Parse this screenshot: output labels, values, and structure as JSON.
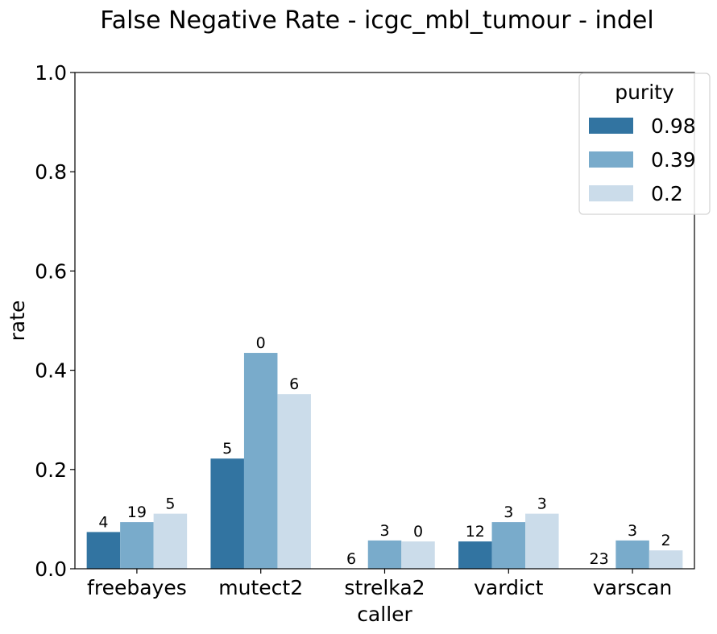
{
  "chart_data": {
    "type": "bar",
    "title": "False Negative Rate - icgc_mbl_tumour - indel",
    "xlabel": "caller",
    "ylabel": "rate",
    "ylim": [
      0,
      1.0
    ],
    "yticks": [
      "0.0",
      "0.2",
      "0.4",
      "0.6",
      "0.8",
      "1.0"
    ],
    "categories": [
      "freebayes",
      "mutect2",
      "strelka2",
      "vardict",
      "varscan"
    ],
    "legend": {
      "title": "purity",
      "placement": "top-right"
    },
    "series": [
      {
        "name": "0.98",
        "color": "#3274a1",
        "values": [
          0.074,
          0.222,
          0.0,
          0.055,
          0.0
        ],
        "labels": [
          "4",
          "5",
          "6",
          "12",
          "23"
        ]
      },
      {
        "name": "0.39",
        "color": "#79abcb",
        "values": [
          0.094,
          0.435,
          0.057,
          0.094,
          0.057
        ],
        "labels": [
          "19",
          "0",
          "3",
          "3",
          "3"
        ]
      },
      {
        "name": "0.2",
        "color": "#cbdcea",
        "values": [
          0.111,
          0.352,
          0.055,
          0.111,
          0.037
        ],
        "labels": [
          "5",
          "6",
          "0",
          "3",
          "2"
        ]
      }
    ]
  }
}
